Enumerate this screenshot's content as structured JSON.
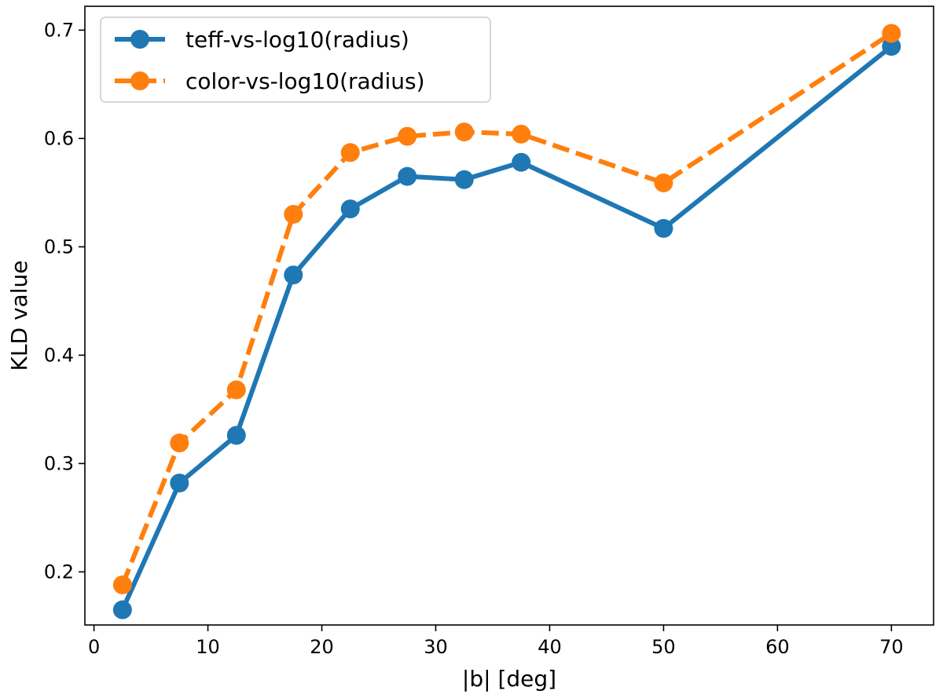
{
  "chart_data": {
    "type": "line",
    "title": "",
    "xlabel": "|b| [deg]",
    "ylabel": "KLD value",
    "xlim": [
      -0.8,
      73.7
    ],
    "ylim": [
      0.151,
      0.722
    ],
    "xticks": [
      0,
      10,
      20,
      30,
      40,
      50,
      60,
      70
    ],
    "xtick_labels": [
      "0",
      "10",
      "20",
      "30",
      "40",
      "50",
      "60",
      "70"
    ],
    "yticks": [
      0.2,
      0.3,
      0.4,
      0.5,
      0.6,
      0.7
    ],
    "ytick_labels": [
      "0.2",
      "0.3",
      "0.4",
      "0.5",
      "0.6",
      "0.7"
    ],
    "grid": false,
    "legend_position": "top-left",
    "x": [
      2.5,
      7.5,
      12.5,
      17.5,
      22.5,
      27.5,
      32.5,
      37.5,
      50,
      70
    ],
    "series": [
      {
        "name": "teff-vs-log10(radius)",
        "values": [
          0.165,
          0.282,
          0.326,
          0.474,
          0.535,
          0.565,
          0.562,
          0.578,
          0.517,
          0.685
        ],
        "color": "#1f77b4",
        "line_style": "solid"
      },
      {
        "name": "color-vs-log10(radius)",
        "values": [
          0.188,
          0.319,
          0.368,
          0.53,
          0.587,
          0.602,
          0.606,
          0.604,
          0.559,
          0.697
        ],
        "color": "#ff7f0e",
        "line_style": "dashed"
      }
    ]
  }
}
